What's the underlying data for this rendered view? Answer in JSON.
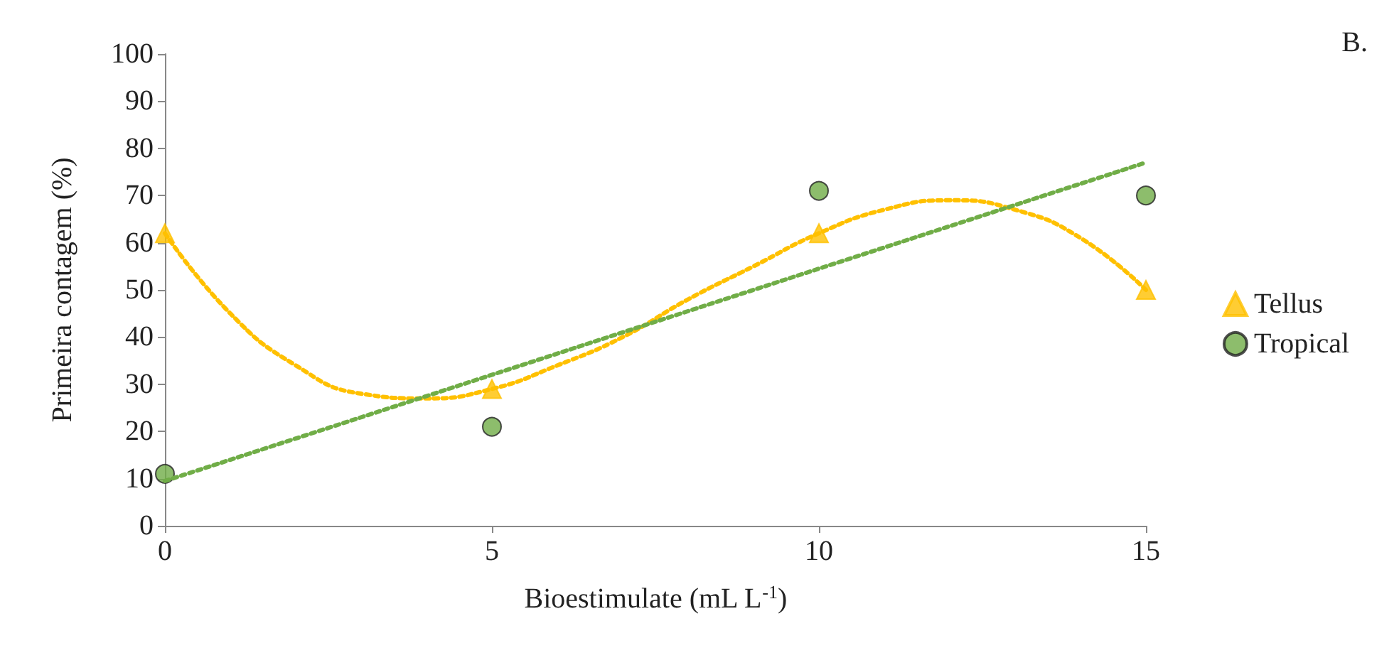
{
  "chart_data": {
    "type": "scatter",
    "xlabel": "Bioestimulate (mL L$^{-1}$)",
    "ylabel": "Primeira contagem (%)",
    "annotations": [
      "B."
    ],
    "xlim": [
      0,
      15
    ],
    "xticks": [
      0,
      5,
      10,
      15
    ],
    "ylim": [
      0,
      100
    ],
    "yticks": [
      0,
      10,
      20,
      30,
      40,
      50,
      60,
      70,
      80,
      90,
      100
    ],
    "grid": false,
    "legend": "right",
    "series": [
      {
        "name": "Tellus",
        "marker": "triangle",
        "color": "#ffc000",
        "x": [
          0,
          5,
          10,
          15
        ],
        "values": [
          62,
          29,
          62,
          50
        ]
      },
      {
        "name": "Tropical",
        "marker": "circle",
        "color": "#70ad47",
        "x": [
          0,
          5,
          10,
          15
        ],
        "values": [
          11,
          21,
          71,
          70
        ]
      },
      {
        "type": "line",
        "marker": "none",
        "line_style": "dotted",
        "color": "#ffc000",
        "x": [
          0,
          1,
          2,
          3,
          4,
          5,
          6,
          7,
          8,
          9,
          10,
          11,
          12,
          13,
          14,
          15
        ],
        "values": [
          62,
          45,
          34,
          28,
          27,
          29,
          34,
          40,
          48,
          55,
          62,
          67,
          69,
          67,
          61,
          50
        ]
      },
      {
        "type": "line",
        "marker": "none",
        "line_style": "dotted",
        "color": "#70ad47",
        "x": [
          0,
          15
        ],
        "values": [
          9.5,
          77
        ]
      }
    ]
  }
}
